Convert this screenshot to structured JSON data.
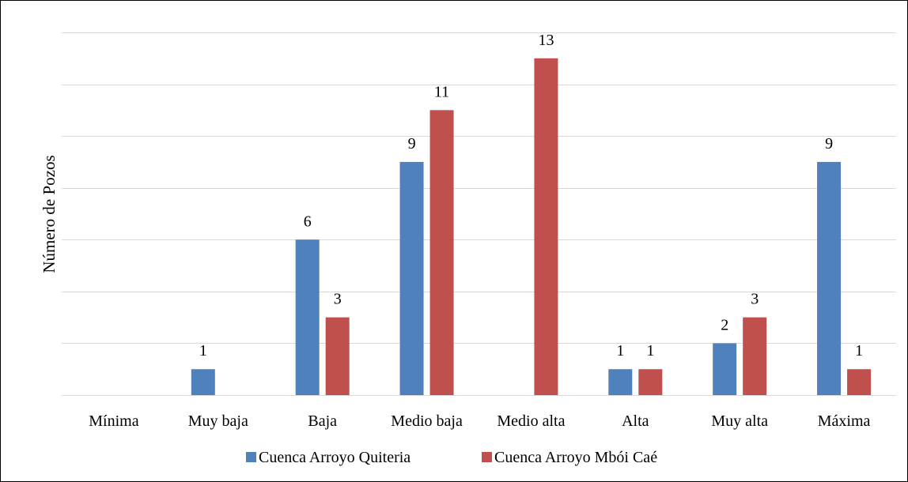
{
  "chart_data": {
    "type": "bar",
    "ylabel": "Número de Pozos",
    "xlabel": "",
    "categories": [
      "Mínima",
      "Muy baja",
      "Baja",
      "Medio baja",
      "Medio alta",
      "Alta",
      "Muy alta",
      "Máxima"
    ],
    "series": [
      {
        "name": "Cuenca Arroyo Quiteria",
        "color": "#4f81bd",
        "values": [
          0,
          1,
          6,
          9,
          0,
          1,
          2,
          9
        ],
        "labels": [
          "",
          "1",
          "6",
          "9",
          "",
          "1",
          "2",
          "9"
        ]
      },
      {
        "name": "Cuenca Arroyo Mbói Caé",
        "color": "#c0504d",
        "values": [
          0,
          0,
          3,
          11,
          13,
          1,
          3,
          1
        ],
        "labels": [
          "",
          "",
          "3",
          "11",
          "13",
          "1",
          "3",
          "1"
        ]
      }
    ],
    "ylim": [
      0,
      14
    ],
    "ygrid_step": 2,
    "grid": true,
    "legend_position": "bottom"
  }
}
